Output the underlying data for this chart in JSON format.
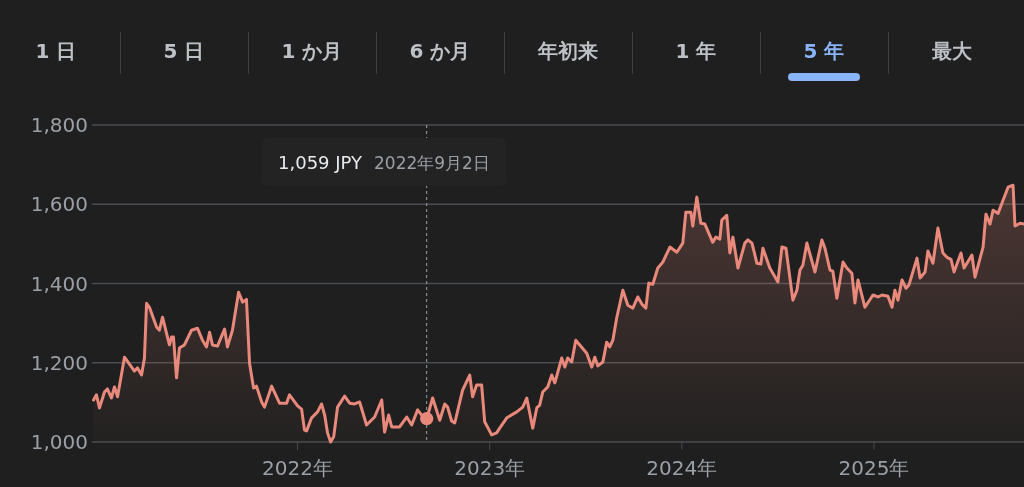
{
  "chart_data": {
    "type": "area",
    "grid": "y",
    "marker": "none",
    "annotations": [
      "1 日",
      "5 日",
      "1 か月",
      "6 か月",
      "年初来",
      "1 年",
      "5 年",
      "最大",
      "1,059 JPY",
      "2022年9月2日"
    ],
    "ref_lines": [
      {
        "axis": "x",
        "value": 2022.672,
        "color": "#9aa0a6",
        "line_style": "dotted"
      }
    ],
    "xlim": [
      2020.93,
      2025.781
    ],
    "xticks": [
      {
        "value": 2022,
        "label": "2022年"
      },
      {
        "value": 2023,
        "label": "2023年"
      },
      {
        "value": 2024,
        "label": "2024年"
      },
      {
        "value": 2025,
        "label": "2025年"
      }
    ],
    "ylim": [
      1000,
      1800
    ],
    "yticks": [
      {
        "value": 1000,
        "label": "1,000"
      },
      {
        "value": 1200,
        "label": "1,200"
      },
      {
        "value": 1400,
        "label": "1,400"
      },
      {
        "value": 1600,
        "label": "1,600"
      },
      {
        "value": 1800,
        "label": "1,800"
      }
    ],
    "series": [
      {
        "color": "#e8897c",
        "x": [
          2020.938,
          2020.953,
          2020.969,
          2020.995,
          2021.01,
          2021.031,
          2021.047,
          2021.063,
          2021.099,
          2021.151,
          2021.167,
          2021.188,
          2021.203,
          2021.214,
          2021.229,
          2021.266,
          2021.281,
          2021.297,
          2021.333,
          2021.344,
          2021.354,
          2021.37,
          2021.385,
          2021.411,
          2021.448,
          2021.479,
          2021.505,
          2021.526,
          2021.542,
          2021.557,
          2021.583,
          2021.62,
          2021.635,
          2021.661,
          2021.693,
          2021.714,
          2021.734,
          2021.75,
          2021.771,
          2021.786,
          2021.813,
          2021.828,
          2021.865,
          2021.906,
          2021.943,
          2021.958,
          2022.0,
          2022.021,
          2022.036,
          2022.047,
          2022.073,
          2022.104,
          2022.125,
          2022.141,
          2022.156,
          2022.172,
          2022.188,
          2022.208,
          2022.245,
          2022.271,
          2022.297,
          2022.323,
          2022.359,
          2022.401,
          2022.438,
          2022.453,
          2022.474,
          2022.49,
          2022.531,
          2022.568,
          2022.594,
          2022.625,
          2022.646,
          2022.672,
          2022.703,
          2022.74,
          2022.766,
          2022.781,
          2022.802,
          2022.818,
          2022.859,
          2022.896,
          2022.911,
          2022.932,
          2022.958,
          2022.974,
          2023.01,
          2023.036,
          2023.052,
          2023.089,
          2023.141,
          2023.172,
          2023.193,
          2023.224,
          2023.245,
          2023.26,
          2023.276,
          2023.302,
          2023.323,
          2023.339,
          2023.375,
          2023.391,
          2023.406,
          2023.427,
          2023.448,
          2023.505,
          2023.531,
          2023.547,
          2023.563,
          2023.589,
          2023.609,
          2023.625,
          2023.641,
          2023.661,
          2023.693,
          2023.719,
          2023.745,
          2023.771,
          2023.792,
          2023.813,
          2023.828,
          2023.849,
          2023.875,
          2023.901,
          2023.938,
          2023.974,
          2024.005,
          2024.021,
          2024.047,
          2024.057,
          2024.078,
          2024.099,
          2024.12,
          2024.161,
          2024.177,
          2024.198,
          2024.208,
          2024.234,
          2024.25,
          2024.266,
          2024.292,
          2024.328,
          2024.344,
          2024.365,
          2024.391,
          2024.411,
          2024.422,
          2024.458,
          2024.5,
          2024.521,
          2024.542,
          2024.578,
          2024.599,
          2024.615,
          2024.63,
          2024.651,
          2024.693,
          2024.729,
          2024.745,
          2024.771,
          2024.786,
          2024.807,
          2024.839,
          2024.859,
          2024.885,
          2024.901,
          2024.917,
          2024.953,
          2024.995,
          2025.021,
          2025.042,
          2025.073,
          2025.094,
          2025.109,
          2025.125,
          2025.146,
          2025.167,
          2025.182,
          2025.224,
          2025.24,
          2025.266,
          2025.281,
          2025.307,
          2025.333,
          2025.359,
          2025.38,
          2025.401,
          2025.417,
          2025.453,
          2025.469,
          2025.51,
          2025.526,
          2025.568,
          2025.583,
          2025.604,
          2025.62,
          2025.646,
          2025.672,
          2025.698,
          2025.724,
          2025.734,
          2025.76,
          2025.781
        ],
        "values": [
          1106,
          1119,
          1086,
          1126,
          1134,
          1111,
          1139,
          1114,
          1214,
          1179,
          1187,
          1169,
          1212,
          1350,
          1340,
          1290,
          1282,
          1315,
          1245,
          1265,
          1265,
          1162,
          1237,
          1245,
          1282,
          1287,
          1257,
          1240,
          1277,
          1245,
          1242,
          1285,
          1240,
          1282,
          1378,
          1353,
          1360,
          1199,
          1136,
          1141,
          1101,
          1088,
          1141,
          1098,
          1098,
          1119,
          1091,
          1083,
          1030,
          1028,
          1061,
          1076,
          1096,
          1068,
          1023,
          1000,
          1013,
          1088,
          1116,
          1098,
          1096,
          1101,
          1043,
          1063,
          1106,
          1025,
          1068,
          1038,
          1038,
          1063,
          1043,
          1081,
          1068,
          1058,
          1111,
          1055,
          1096,
          1088,
          1053,
          1048,
          1131,
          1169,
          1114,
          1144,
          1144,
          1051,
          1018,
          1023,
          1035,
          1061,
          1076,
          1088,
          1111,
          1035,
          1086,
          1093,
          1126,
          1139,
          1169,
          1149,
          1212,
          1189,
          1212,
          1202,
          1257,
          1224,
          1189,
          1214,
          1192,
          1202,
          1252,
          1240,
          1257,
          1313,
          1383,
          1345,
          1338,
          1366,
          1348,
          1338,
          1401,
          1398,
          1439,
          1454,
          1492,
          1479,
          1502,
          1580,
          1580,
          1545,
          1618,
          1552,
          1550,
          1504,
          1517,
          1512,
          1560,
          1572,
          1477,
          1517,
          1439,
          1502,
          1510,
          1502,
          1451,
          1449,
          1489,
          1439,
          1404,
          1492,
          1489,
          1358,
          1383,
          1434,
          1446,
          1502,
          1429,
          1510,
          1489,
          1434,
          1431,
          1363,
          1454,
          1439,
          1426,
          1351,
          1409,
          1340,
          1371,
          1366,
          1371,
          1368,
          1340,
          1383,
          1358,
          1409,
          1388,
          1396,
          1464,
          1414,
          1429,
          1482,
          1451,
          1540,
          1477,
          1466,
          1461,
          1429,
          1477,
          1439,
          1472,
          1416,
          1492,
          1575,
          1550,
          1585,
          1577,
          1610,
          1643,
          1648,
          1545,
          1552,
          1550
        ]
      },
      {
        "type": "scatter",
        "color": "#e8897c",
        "marker": "circle",
        "x": [
          2022.672
        ],
        "values": [
          1059
        ]
      }
    ]
  }
}
